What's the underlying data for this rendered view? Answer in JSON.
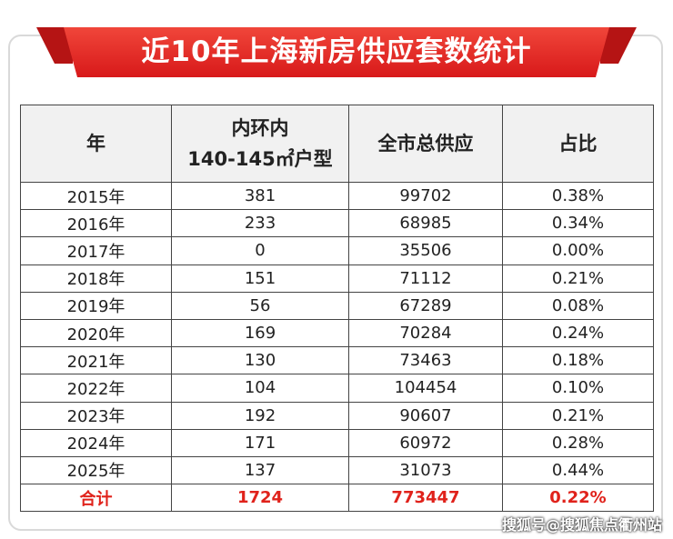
{
  "title": "近10年上海新房供应套数统计",
  "table": {
    "columns": [
      [
        "年"
      ],
      [
        "内环内",
        "140-145㎡户型"
      ],
      [
        "全市总供应"
      ],
      [
        "占比"
      ]
    ],
    "rows": [
      [
        "2015年",
        "381",
        "99702",
        "0.38%"
      ],
      [
        "2016年",
        "233",
        "68985",
        "0.34%"
      ],
      [
        "2017年",
        "0",
        "35506",
        "0.00%"
      ],
      [
        "2018年",
        "151",
        "71112",
        "0.21%"
      ],
      [
        "2019年",
        "56",
        "67289",
        "0.08%"
      ],
      [
        "2020年",
        "169",
        "70284",
        "0.24%"
      ],
      [
        "2021年",
        "130",
        "73463",
        "0.18%"
      ],
      [
        "2022年",
        "104",
        "104454",
        "0.10%"
      ],
      [
        "2023年",
        "192",
        "90607",
        "0.21%"
      ],
      [
        "2024年",
        "171",
        "60972",
        "0.28%"
      ],
      [
        "2025年",
        "137",
        "31073",
        "0.44%"
      ]
    ],
    "total": [
      "合计",
      "1724",
      "773447",
      "0.22%"
    ]
  },
  "watermark": "搜狐号@搜狐焦点衢州站"
}
